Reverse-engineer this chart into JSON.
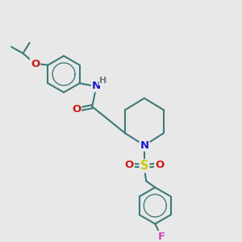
{
  "bg_color": "#e8e8e8",
  "bond_color": "#3d7a7a",
  "bond_width": 1.5,
  "atom_colors": {
    "N": "#1a1acc",
    "O": "#cc1a1a",
    "S": "#cccc00",
    "F": "#cc44bb",
    "H": "#777777"
  },
  "font_size_atom": 9.5,
  "font_size_h": 8.0,
  "figsize": [
    3.0,
    3.0
  ],
  "dpi": 100,
  "xlim": [
    0,
    10
  ],
  "ylim": [
    0,
    10
  ]
}
